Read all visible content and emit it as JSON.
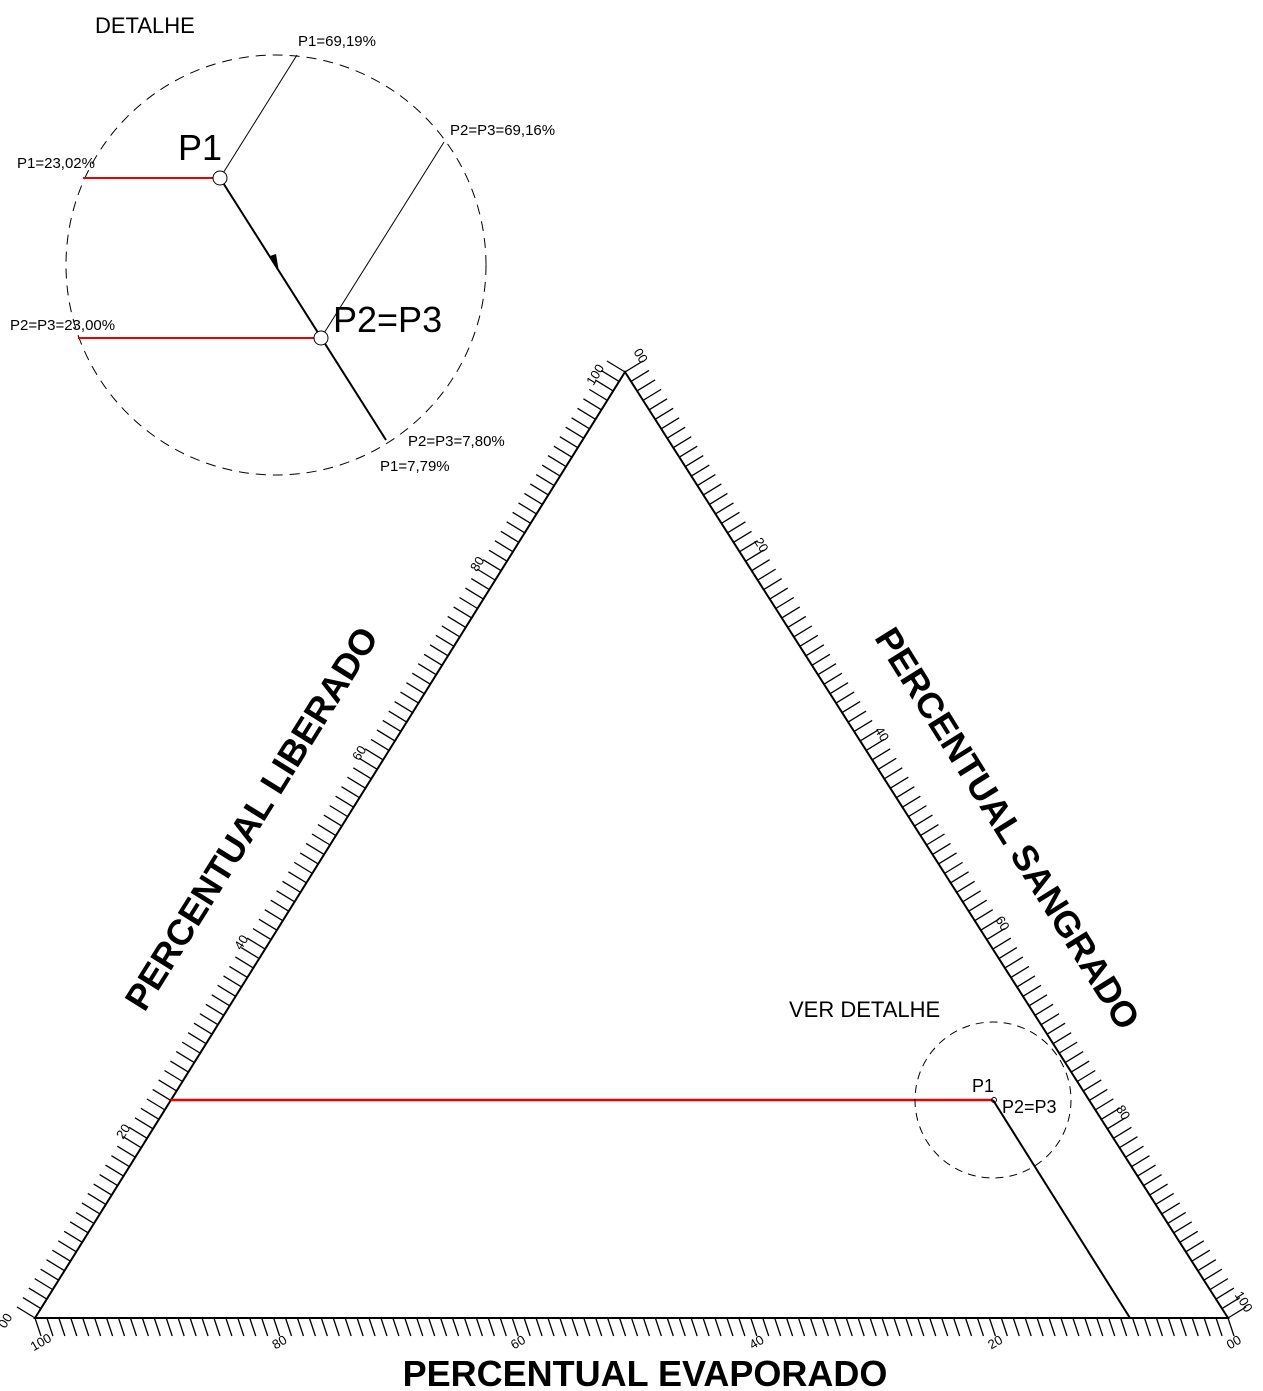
{
  "detail": {
    "title": "DETALHE",
    "p1": "P1",
    "p2p3": "P2=P3",
    "p1_right": "P1=69,19%",
    "p2p3_right": "P2=P3=69,16%",
    "p1_left": "P1=23,02%",
    "p2p3_left": "P2=P3=23,00%",
    "p2p3_bottom": "P2=P3=7,80%",
    "p1_bottom": "P1=7,79%"
  },
  "diagram": {
    "left_title": "PERCENTUAL LIBERADO",
    "right_title": "PERCENTUAL SANGRADO",
    "bottom_title": "PERCENTUAL EVAPORADO",
    "left_ticks": [
      "00",
      "20",
      "40",
      "60",
      "80",
      "100"
    ],
    "right_ticks": [
      "00",
      "20",
      "40",
      "60",
      "80",
      "100"
    ],
    "bottom_ticks": [
      "100",
      "80",
      "60",
      "40",
      "20",
      "00"
    ],
    "see_detail": "VER DETALHE",
    "p1": "P1",
    "p2p3": "P2=P3"
  }
}
